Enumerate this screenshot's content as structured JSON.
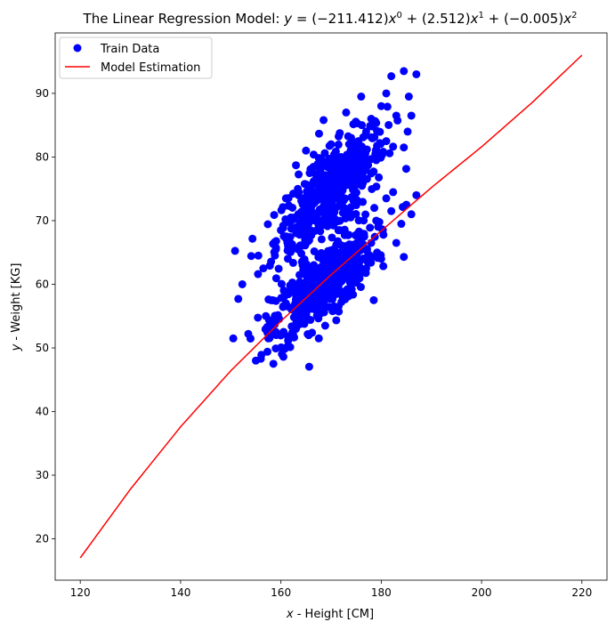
{
  "chart_data": {
    "type": "scatter",
    "title": "The Linear Regression Model: y = (−211.412)x⁰ + (2.512)x¹ + (−0.005)x²",
    "xlabel": "x - Height [CM]",
    "ylabel": "y - Weight [KG]",
    "xlim": [
      115,
      225
    ],
    "ylim": [
      13.5,
      99.5
    ],
    "xticks": [
      120,
      140,
      160,
      180,
      200,
      220
    ],
    "yticks": [
      20,
      30,
      40,
      50,
      60,
      70,
      80,
      90
    ],
    "grid": false,
    "legend_position": "top-left",
    "series": [
      {
        "name": "Train Data",
        "kind": "scatter",
        "color": "#0000ff",
        "cluster_summary": [
          {
            "x_mean": 170.0,
            "y_mean": 74.5,
            "x_sd": 5.5,
            "y_sd": 5.0
          },
          {
            "x_mean": 168.5,
            "y_mean": 60.0,
            "x_sd": 5.0,
            "y_sd": 4.2
          }
        ],
        "points_sample": [
          [
            150.5,
            51.5
          ],
          [
            151.5,
            57.7
          ],
          [
            152.3,
            60.0
          ],
          [
            153.5,
            52.2
          ],
          [
            155.0,
            48.0
          ],
          [
            155.5,
            64.5
          ],
          [
            156.5,
            62.5
          ],
          [
            156.0,
            48.3
          ],
          [
            158.5,
            47.5
          ],
          [
            157.0,
            55.0
          ],
          [
            159.0,
            65.5
          ],
          [
            160.0,
            68.5
          ],
          [
            161.0,
            73.5
          ],
          [
            160.5,
            48.6
          ],
          [
            162.0,
            70.5
          ],
          [
            163.0,
            78.7
          ],
          [
            163.5,
            74.0
          ],
          [
            164.0,
            66.0
          ],
          [
            165.0,
            81.0
          ],
          [
            166.0,
            72.0
          ],
          [
            167.0,
            76.5
          ],
          [
            168.0,
            79.0
          ],
          [
            168.5,
            85.8
          ],
          [
            169.0,
            70.0
          ],
          [
            170.0,
            82.0
          ],
          [
            171.0,
            75.0
          ],
          [
            172.0,
            80.0
          ],
          [
            173.0,
            87.0
          ],
          [
            174.0,
            83.0
          ],
          [
            175.0,
            78.0
          ],
          [
            176.0,
            89.5
          ],
          [
            177.0,
            84.0
          ],
          [
            178.0,
            86.0
          ],
          [
            179.0,
            81.0
          ],
          [
            180.0,
            88.0
          ],
          [
            181.0,
            90.0
          ],
          [
            182.0,
            92.7
          ],
          [
            183.0,
            86.5
          ],
          [
            184.5,
            93.5
          ],
          [
            185.5,
            89.5
          ],
          [
            186.0,
            86.5
          ],
          [
            187.0,
            93.0
          ],
          [
            184.5,
            81.5
          ],
          [
            181.0,
            82.5
          ],
          [
            179.0,
            79.5
          ],
          [
            165.0,
            55.0
          ],
          [
            166.0,
            58.0
          ],
          [
            167.0,
            62.0
          ],
          [
            168.0,
            56.5
          ],
          [
            169.0,
            60.5
          ],
          [
            170.0,
            64.0
          ],
          [
            171.0,
            58.5
          ],
          [
            172.0,
            62.0
          ],
          [
            173.0,
            66.0
          ],
          [
            174.0,
            60.0
          ],
          [
            175.0,
            64.5
          ],
          [
            176.0,
            68.0
          ],
          [
            177.0,
            62.5
          ],
          [
            178.0,
            66.5
          ],
          [
            179.0,
            70.0
          ],
          [
            180.0,
            64.0
          ],
          [
            181.0,
            73.5
          ],
          [
            182.0,
            71.5
          ],
          [
            183.0,
            66.5
          ],
          [
            184.0,
            69.5
          ],
          [
            184.5,
            64.3
          ],
          [
            185.0,
            72.5
          ],
          [
            186.0,
            71.0
          ],
          [
            187.0,
            74.0
          ],
          [
            178.5,
            57.5
          ],
          [
            171.5,
            56.5
          ],
          [
            163.0,
            53.0
          ],
          [
            161.0,
            57.0
          ],
          [
            159.0,
            52.5
          ],
          [
            157.5,
            51.5
          ]
        ]
      },
      {
        "name": "Model Estimation",
        "kind": "line",
        "color": "#ff0000",
        "coefficients": [
          -211.412,
          2.512,
          -0.005
        ],
        "x_range": [
          120,
          220
        ],
        "points": [
          [
            120,
            17.0
          ],
          [
            130,
            27.8
          ],
          [
            140,
            37.6
          ],
          [
            150,
            46.4
          ],
          [
            160,
            54.2
          ],
          [
            170,
            61.5
          ],
          [
            180,
            68.4
          ],
          [
            190,
            75.2
          ],
          [
            200,
            81.6
          ],
          [
            210,
            88.5
          ],
          [
            220,
            96.0
          ]
        ]
      }
    ]
  }
}
